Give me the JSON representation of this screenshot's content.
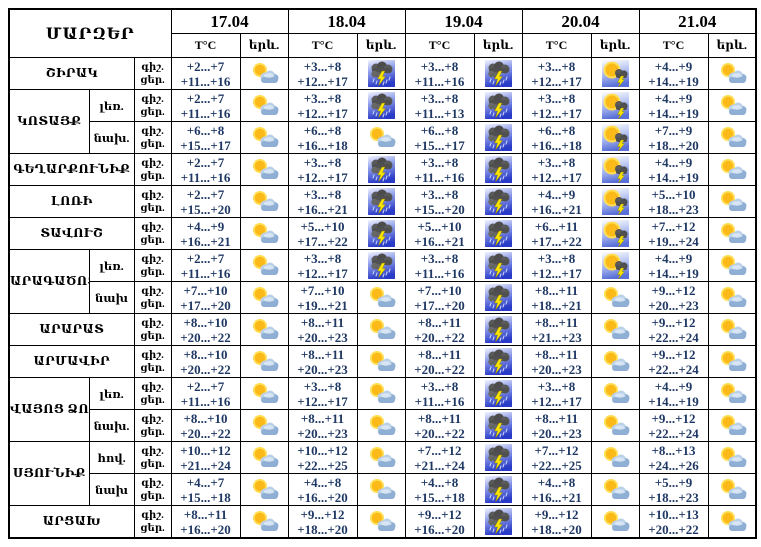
{
  "table": {
    "corner_label": "ՄԱՐԶԵՐ",
    "dates": [
      "17.04",
      "18.04",
      "19.04",
      "20.04",
      "21.04"
    ],
    "temp_header": "T°C",
    "phenomenon_header": "երև.",
    "time_labels": {
      "night": "գիշ.",
      "day": "ցեր."
    },
    "icon_names": {
      "pc": "sun-behind-cloud",
      "ts": "thunderstorm-rain",
      "st": "sun-with-thunderstorm"
    },
    "groups": [
      {
        "region": "ՇԻՐԱԿ",
        "rows": [
          {
            "sub": null,
            "cells": [
              {
                "night": "+2...+7",
                "day": "+11...+16",
                "icon": "pc"
              },
              {
                "night": "+3...+8",
                "day": "+12...+17",
                "icon": "ts"
              },
              {
                "night": "+3...+8",
                "day": "+11...+16",
                "icon": "ts"
              },
              {
                "night": "+3...+8",
                "day": "+12...+17",
                "icon": "st"
              },
              {
                "night": "+4...+9",
                "day": "+14...+19",
                "icon": "pc"
              }
            ]
          }
        ]
      },
      {
        "region": "ԿՈՏԱՅՔ",
        "rows": [
          {
            "sub": "լեռ.",
            "cells": [
              {
                "night": "+2...+7",
                "day": "+11...+16",
                "icon": "pc"
              },
              {
                "night": "+3...+8",
                "day": "+12...+17",
                "icon": "ts"
              },
              {
                "night": "+3...+8",
                "day": "+11...+13",
                "icon": "ts"
              },
              {
                "night": "+3...+8",
                "day": "+12...+17",
                "icon": "st"
              },
              {
                "night": "+4...+9",
                "day": "+14...+19",
                "icon": "pc"
              }
            ]
          },
          {
            "sub": "նախ.",
            "cells": [
              {
                "night": "+6...+8",
                "day": "+15...+17",
                "icon": "pc"
              },
              {
                "night": "+6...+8",
                "day": "+16...+18",
                "icon": "pc"
              },
              {
                "night": "+6...+8",
                "day": "+15...+17",
                "icon": "ts"
              },
              {
                "night": "+6...+8",
                "day": "+16...+18",
                "icon": "st"
              },
              {
                "night": "+7...+9",
                "day": "+18...+20",
                "icon": "pc"
              }
            ]
          }
        ]
      },
      {
        "region": "ԳԵՂԱՐՔՈՒՆԻՔ",
        "rows": [
          {
            "sub": null,
            "cells": [
              {
                "night": "+2...+7",
                "day": "+11...+16",
                "icon": "pc"
              },
              {
                "night": "+3...+8",
                "day": "+12...+17",
                "icon": "ts"
              },
              {
                "night": "+3...+8",
                "day": "+11...+16",
                "icon": "ts"
              },
              {
                "night": "+3...+8",
                "day": "+12...+17",
                "icon": "st"
              },
              {
                "night": "+4...+9",
                "day": "+14...+19",
                "icon": "pc"
              }
            ]
          }
        ]
      },
      {
        "region": "ԼՈՌԻ",
        "rows": [
          {
            "sub": null,
            "cells": [
              {
                "night": "+2...+7",
                "day": "+15...+20",
                "icon": "pc"
              },
              {
                "night": "+3...+8",
                "day": "+16...+21",
                "icon": "ts"
              },
              {
                "night": "+3...+8",
                "day": "+15...+20",
                "icon": "ts"
              },
              {
                "night": "+4...+9",
                "day": "+16...+21",
                "icon": "st"
              },
              {
                "night": "+5...+10",
                "day": "+18...+23",
                "icon": "pc"
              }
            ]
          }
        ]
      },
      {
        "region": "ՏԱՎՈՒՇ",
        "rows": [
          {
            "sub": null,
            "cells": [
              {
                "night": "+4...+9",
                "day": "+16...+21",
                "icon": "pc"
              },
              {
                "night": "+5...+10",
                "day": "+17...+22",
                "icon": "ts"
              },
              {
                "night": "+5...+10",
                "day": "+16...+21",
                "icon": "ts"
              },
              {
                "night": "+6...+11",
                "day": "+17...+22",
                "icon": "st"
              },
              {
                "night": "+7...+12",
                "day": "+19...+24",
                "icon": "pc"
              }
            ]
          }
        ]
      },
      {
        "region": "ԱՐԱԳԱԾՈՏՆ",
        "rows": [
          {
            "sub": "լեռ.",
            "cells": [
              {
                "night": "+2...+7",
                "day": "+11...+16",
                "icon": "pc"
              },
              {
                "night": "+3...+8",
                "day": "+12...+17",
                "icon": "ts"
              },
              {
                "night": "+3...+8",
                "day": "+11...+16",
                "icon": "ts"
              },
              {
                "night": "+3...+8",
                "day": "+12...+17",
                "icon": "st"
              },
              {
                "night": "+4...+9",
                "day": "+14...+19",
                "icon": "pc"
              }
            ]
          },
          {
            "sub": "նախ",
            "cells": [
              {
                "night": "+7...+10",
                "day": "+17...+20",
                "icon": "pc"
              },
              {
                "night": "+7...+10",
                "day": "+19...+21",
                "icon": "pc"
              },
              {
                "night": "+7...+10",
                "day": "+17...+20",
                "icon": "ts"
              },
              {
                "night": "+8...+11",
                "day": "+18...+21",
                "icon": "pc"
              },
              {
                "night": "+9...+12",
                "day": "+20...+23",
                "icon": "pc"
              }
            ]
          }
        ]
      },
      {
        "region": "ԱՐԱՐԱՏ",
        "rows": [
          {
            "sub": null,
            "cells": [
              {
                "night": "+8...+10",
                "day": "+20...+22",
                "icon": "pc"
              },
              {
                "night": "+8...+11",
                "day": "+20...+23",
                "icon": "pc"
              },
              {
                "night": "+8...+11",
                "day": "+20...+22",
                "icon": "ts"
              },
              {
                "night": "+8...+11",
                "day": "+21...+23",
                "icon": "pc"
              },
              {
                "night": "+9...+12",
                "day": "+22...+24",
                "icon": "pc"
              }
            ]
          }
        ]
      },
      {
        "region": "ԱՐՄԱՎԻՐ",
        "rows": [
          {
            "sub": null,
            "cells": [
              {
                "night": "+8...+10",
                "day": "+20...+22",
                "icon": "pc"
              },
              {
                "night": "+8...+11",
                "day": "+20...+23",
                "icon": "pc"
              },
              {
                "night": "+8...+11",
                "day": "+20...+22",
                "icon": "ts"
              },
              {
                "night": "+8...+11",
                "day": "+20...+23",
                "icon": "pc"
              },
              {
                "night": "+9...+12",
                "day": "+22...+24",
                "icon": "pc"
              }
            ]
          }
        ]
      },
      {
        "region": "ՎԱՅՈՑ ՁՈՐ",
        "rows": [
          {
            "sub": "լեռ.",
            "cells": [
              {
                "night": "+2...+7",
                "day": "+11...+16",
                "icon": "pc"
              },
              {
                "night": "+3...+8",
                "day": "+12...+17",
                "icon": "pc"
              },
              {
                "night": "+3...+8",
                "day": "+11...+16",
                "icon": "ts"
              },
              {
                "night": "+3...+8",
                "day": "+12...+17",
                "icon": "pc"
              },
              {
                "night": "+4...+9",
                "day": "+14...+19",
                "icon": "pc"
              }
            ]
          },
          {
            "sub": "նախ.",
            "cells": [
              {
                "night": "+8...+10",
                "day": "+20...+22",
                "icon": "pc"
              },
              {
                "night": "+8...+11",
                "day": "+20...+23",
                "icon": "pc"
              },
              {
                "night": "+8...+11",
                "day": "+20...+22",
                "icon": "ts"
              },
              {
                "night": "+8...+11",
                "day": "+20...+23",
                "icon": "pc"
              },
              {
                "night": "+9...+12",
                "day": "+22...+24",
                "icon": "pc"
              }
            ]
          }
        ]
      },
      {
        "region": "ՍՅՈՒՆԻՔ",
        "rows": [
          {
            "sub": "հով.",
            "cells": [
              {
                "night": "+10...+12",
                "day": "+21...+24",
                "icon": "pc"
              },
              {
                "night": "+10...+12",
                "day": "+22...+25",
                "icon": "pc"
              },
              {
                "night": "+7...+12",
                "day": "+21...+24",
                "icon": "ts"
              },
              {
                "night": "+7...+12",
                "day": "+22...+25",
                "icon": "pc"
              },
              {
                "night": "+8...+13",
                "day": "+24...+26",
                "icon": "pc"
              }
            ]
          },
          {
            "sub": "նախ",
            "cells": [
              {
                "night": "+4...+7",
                "day": "+15...+18",
                "icon": "pc"
              },
              {
                "night": "+4...+8",
                "day": "+16...+20",
                "icon": "pc"
              },
              {
                "night": "+4...+8",
                "day": "+15...+18",
                "icon": "ts"
              },
              {
                "night": "+4...+8",
                "day": "+16...+21",
                "icon": "pc"
              },
              {
                "night": "+5...+9",
                "day": "+18...+23",
                "icon": "pc"
              }
            ]
          }
        ]
      },
      {
        "region": "ԱՐՑԱԽ",
        "rows": [
          {
            "sub": null,
            "cells": [
              {
                "night": "+8...+11",
                "day": "+16...+20",
                "icon": "pc"
              },
              {
                "night": "+9...+12",
                "day": "+18...+20",
                "icon": "pc"
              },
              {
                "night": "+9...+12",
                "day": "+16...+20",
                "icon": "ts"
              },
              {
                "night": "+9...+12",
                "day": "+18...+20",
                "icon": "pc"
              },
              {
                "night": "+10...+13",
                "day": "+20...+22",
                "icon": "pc"
              }
            ]
          }
        ]
      }
    ]
  },
  "colors": {
    "table_border": "#000000",
    "text": "#000000",
    "temperature_text": "#1F3864",
    "sun_core": "#FBBA18",
    "sun_halo": "#FFDE55",
    "cloud_light": "#B9D0E8",
    "cloud_mid": "#8FB0D4",
    "storm_cloud": "#505050",
    "lightning": "#F6E400",
    "storm_bg_top": "#F2F5FF",
    "storm_bg_bottom": "#2A3BC8",
    "sun_storm_bg_bottom": "#5A6FD8",
    "rain": "#CAD6F5"
  }
}
